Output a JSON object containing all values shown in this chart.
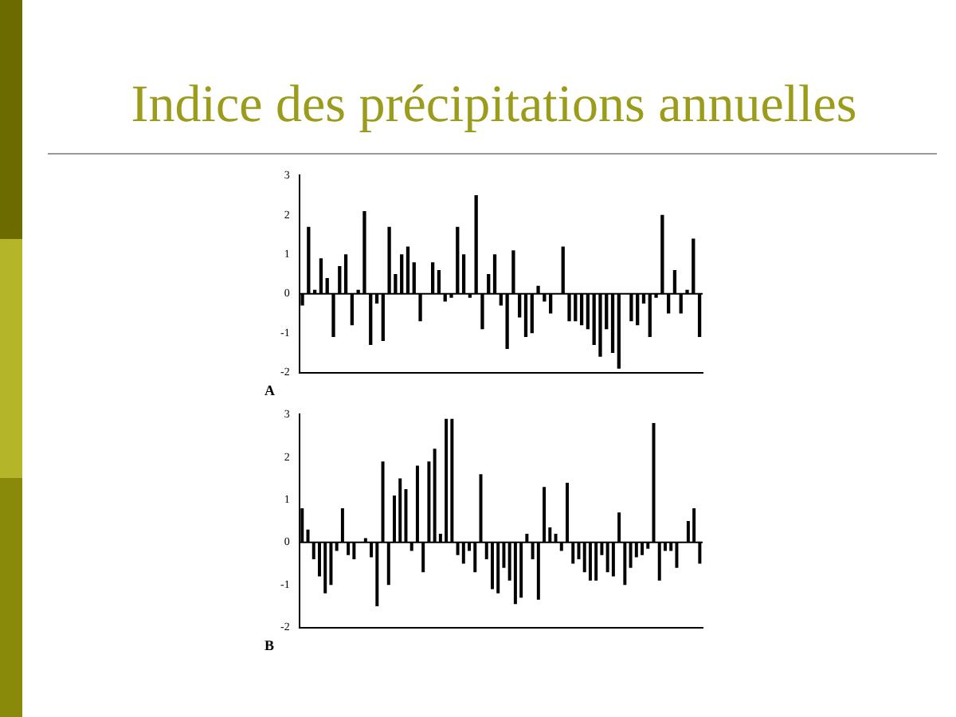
{
  "chart_data": [
    {
      "type": "bar",
      "title": "Indice des précipitations annuelles",
      "ylim": [
        -2,
        3
      ],
      "yticks": [
        -2,
        -1,
        0,
        1,
        2,
        3
      ],
      "legend": false,
      "annotations": [
        "A"
      ],
      "ref_lines": [
        {
          "axis": "y",
          "value": 0
        }
      ],
      "categories": [
        null,
        null,
        null,
        null,
        null,
        null,
        null,
        null,
        null,
        null,
        null,
        null,
        null,
        null,
        null,
        null,
        null,
        null,
        null,
        null,
        null,
        null,
        null,
        null,
        null,
        null,
        null,
        null,
        null,
        null,
        null,
        null,
        null,
        null,
        null,
        null,
        null,
        null,
        null,
        null,
        null,
        null,
        null,
        null,
        null,
        null,
        null,
        null,
        null,
        null,
        null,
        null,
        null,
        null,
        null,
        null,
        null,
        null,
        null,
        null,
        null,
        null,
        null,
        null,
        null
      ],
      "series": [
        {
          "color": "#000000",
          "values": [
            -0.3,
            1.7,
            0.1,
            0.9,
            0.4,
            -1.1,
            0.7,
            1.0,
            -0.8,
            0.1,
            2.1,
            -1.3,
            -0.25,
            -1.2,
            1.7,
            0.5,
            1.0,
            1.2,
            0.8,
            -0.7,
            0.0,
            0.8,
            0.6,
            -0.2,
            -0.1,
            1.7,
            1.0,
            -0.1,
            2.5,
            -0.9,
            0.5,
            1.0,
            -0.3,
            -1.4,
            1.1,
            -0.6,
            -1.1,
            -1.0,
            0.2,
            -0.2,
            -0.5,
            0.0,
            1.2,
            -0.7,
            -0.7,
            -0.8,
            -0.9,
            -1.3,
            -1.6,
            -0.9,
            -1.5,
            -1.9,
            0.0,
            -0.7,
            -0.8,
            -0.25,
            -1.1,
            -0.1,
            2.0,
            -0.5,
            0.6,
            -0.5,
            0.1,
            1.4,
            -1.1
          ]
        }
      ]
    },
    {
      "type": "bar",
      "ylim": [
        -2,
        3
      ],
      "yticks": [
        -2,
        -1,
        0,
        1,
        2,
        3
      ],
      "legend": false,
      "annotations": [
        "B"
      ],
      "ref_lines": [
        {
          "axis": "y",
          "value": 0
        }
      ],
      "categories": [
        null,
        null,
        null,
        null,
        null,
        null,
        null,
        null,
        null,
        null,
        null,
        null,
        null,
        null,
        null,
        null,
        null,
        null,
        null,
        null,
        null,
        null,
        null,
        null,
        null,
        null,
        null,
        null,
        null,
        null,
        null,
        null,
        null,
        null,
        null,
        null,
        null,
        null,
        null,
        null,
        null,
        null,
        null,
        null,
        null,
        null,
        null,
        null,
        null,
        null,
        null,
        null,
        null,
        null,
        null,
        null,
        null,
        null,
        null,
        null,
        null,
        null,
        null,
        null,
        null,
        null,
        null,
        null,
        null,
        null
      ],
      "series": [
        {
          "color": "#000000",
          "values": [
            0.8,
            0.3,
            -0.4,
            -0.8,
            -1.2,
            -1.0,
            -0.2,
            0.8,
            -0.3,
            -0.4,
            0.0,
            0.1,
            -0.35,
            -1.5,
            1.9,
            -1.0,
            1.1,
            1.5,
            1.25,
            -0.2,
            1.8,
            -0.7,
            1.9,
            2.2,
            0.2,
            2.9,
            2.9,
            -0.3,
            -0.5,
            -0.2,
            -0.7,
            1.6,
            -0.4,
            -1.1,
            -1.2,
            -0.6,
            -0.9,
            -1.45,
            -1.3,
            0.2,
            -0.4,
            -1.35,
            1.3,
            0.35,
            0.2,
            -0.2,
            1.4,
            -0.5,
            -0.4,
            -0.7,
            -0.9,
            -0.9,
            -0.3,
            -0.7,
            -0.8,
            0.7,
            -1.0,
            -0.6,
            -0.35,
            -0.3,
            -0.15,
            2.8,
            -0.9,
            -0.2,
            -0.2,
            -0.6,
            0.0,
            0.5,
            0.8,
            -0.5
          ]
        }
      ]
    }
  ]
}
